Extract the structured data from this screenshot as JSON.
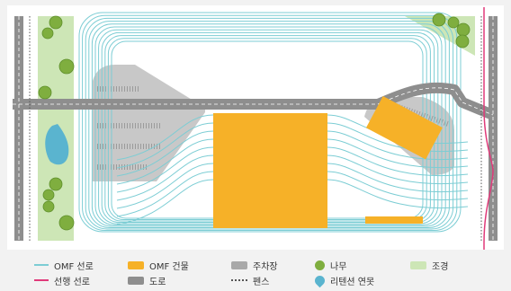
{
  "legend": {
    "items": [
      {
        "label": "OMF 선로",
        "icon": "line-icon",
        "color": "#7ccdd4"
      },
      {
        "label": "OMF 건물",
        "icon": "rect-icon",
        "color": "#f6b128"
      },
      {
        "label": "주차장",
        "icon": "rect-icon",
        "color": "#a9a9a9"
      },
      {
        "label": "나무",
        "icon": "circle-icon",
        "color": "#7fae3f"
      },
      {
        "label": "조경",
        "icon": "rect-icon",
        "color": "#cde6b6"
      },
      {
        "label": "선행 선로",
        "icon": "line-icon",
        "color": "#e03a7a"
      },
      {
        "label": "도로",
        "icon": "rect-icon",
        "color": "#8e8e8e"
      },
      {
        "label": "펜스",
        "icon": "dotted-line-icon",
        "color": "#555555"
      },
      {
        "label": "리텐션 연못",
        "icon": "pond-icon",
        "color": "#5ab4cf"
      }
    ]
  },
  "colors": {
    "background": "#ffffff",
    "track": "#7ccdd4",
    "mainline": "#e03a7a",
    "building": "#f6b128",
    "parking": "#c8c8c8",
    "road": "#8e8e8e",
    "landscape": "#cde6b6",
    "tree": "#7fae3f",
    "pond": "#5ab4cf",
    "fence": "#555555"
  }
}
